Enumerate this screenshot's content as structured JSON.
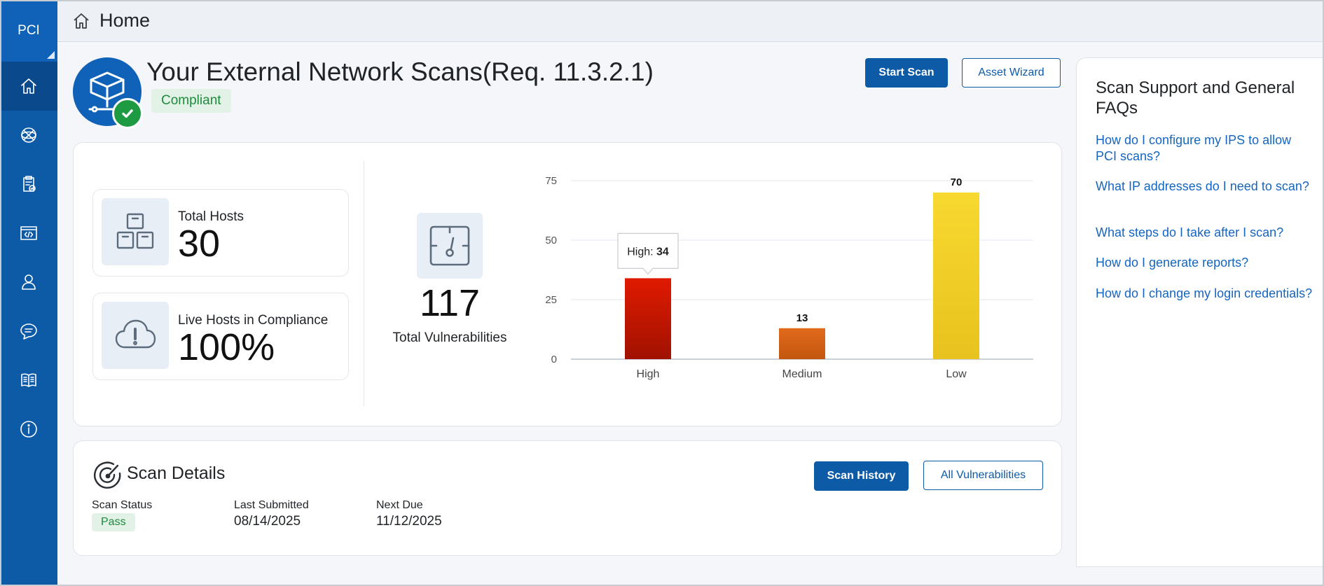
{
  "sidebar": {
    "logo": "PCI",
    "items": [
      {
        "icon": "home-icon",
        "active": true
      },
      {
        "icon": "globe-icon",
        "active": false
      },
      {
        "icon": "clipboard-check-icon",
        "active": false
      },
      {
        "icon": "code-window-icon",
        "active": false
      },
      {
        "icon": "user-icon",
        "active": false
      },
      {
        "icon": "chat-icon",
        "active": false
      },
      {
        "icon": "book-icon",
        "active": false
      },
      {
        "icon": "info-icon",
        "active": false
      }
    ]
  },
  "topbar": {
    "title": "Home",
    "icon": "home-icon"
  },
  "header": {
    "title": "Your External Network Scans(Req. 11.3.2.1)",
    "status_badge": "Compliant",
    "start_scan_label": "Start Scan",
    "asset_wizard_label": "Asset Wizard"
  },
  "stats": {
    "total_hosts": {
      "label": "Total Hosts",
      "value": "30"
    },
    "live_hosts": {
      "label": "Live Hosts in Compliance",
      "value": "100%"
    },
    "total_vulnerabilities": {
      "label": "Total Vulnerabilities",
      "value": "117"
    }
  },
  "chart_data": {
    "type": "bar",
    "categories": [
      "High",
      "Medium",
      "Low"
    ],
    "values": [
      34,
      13,
      70
    ],
    "data_labels": [
      "",
      "13",
      "70"
    ],
    "ylim": [
      0,
      75
    ],
    "yticks": [
      "0",
      "25",
      "50",
      "75"
    ],
    "colors": [
      "#c81e00",
      "#d46015",
      "#f5cf22"
    ],
    "grid": true,
    "tooltip": {
      "label": "High:",
      "value": "34"
    }
  },
  "scan_details": {
    "title": "Scan Details",
    "scan_history_label": "Scan History",
    "all_vulnerabilities_label": "All Vulnerabilities",
    "status_label": "Scan Status",
    "status_value": "Pass",
    "last_submitted_label": "Last Submitted",
    "last_submitted_value": "08/14/2025",
    "next_due_label": "Next Due",
    "next_due_value": "11/12/2025"
  },
  "faq": {
    "title": "Scan Support and General FAQs",
    "links": [
      "How do I configure my IPS to allow PCI scans?",
      "What IP addresses do I need to scan?",
      "What steps do I take after I scan?",
      "How do I generate reports?",
      "How do I change my login credentials?"
    ]
  }
}
